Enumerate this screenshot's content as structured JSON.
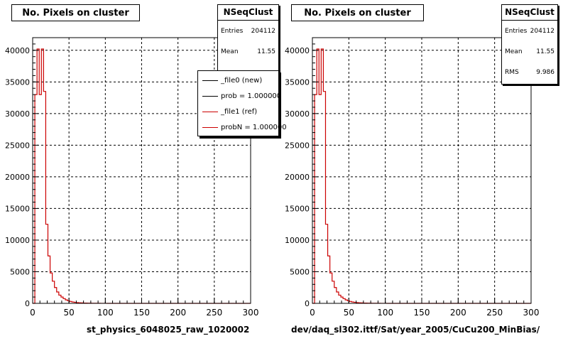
{
  "colors": {
    "new": "#000000",
    "ref": "#cc0000",
    "grid": "#000000"
  },
  "panels": [
    {
      "title": "No. Pixels on cluster",
      "stats": {
        "name": "NSeqClust",
        "rows": [
          {
            "label": "Entries",
            "value": "204112"
          },
          {
            "label": "Mean",
            "value": "11.55"
          }
        ]
      },
      "legend": [
        {
          "label": "_file0 (new)",
          "color": "#000000"
        },
        {
          "label": "prob = 1.000000",
          "color": "#000000"
        },
        {
          "label": "_file1 (ref)",
          "color": "#cc0000"
        },
        {
          "label": "probN = 1.000000",
          "color": "#cc0000"
        }
      ],
      "footer": "st_physics_6048025_raw_1020002"
    },
    {
      "title": "No. Pixels on cluster",
      "stats": {
        "name": "NSeqClust",
        "rows": [
          {
            "label": "Entries",
            "value": "204112"
          },
          {
            "label": "Mean",
            "value": "11.55"
          },
          {
            "label": "RMS",
            "value": "9.986"
          }
        ]
      },
      "legend": [],
      "footer": "dev/daq_sl302.ittf/Sat/year_2005/CuCu200_MinBias/"
    }
  ],
  "chart_data": [
    {
      "type": "bar",
      "title": "No. Pixels on cluster",
      "xlabel": "st_physics_6048025_raw_1020002",
      "ylabel": "",
      "xlim": [
        0,
        300
      ],
      "ylim": [
        0,
        42000
      ],
      "xticks": [
        0,
        50,
        100,
        150,
        200,
        250,
        300
      ],
      "yticks": [
        0,
        5000,
        10000,
        15000,
        20000,
        25000,
        30000,
        35000,
        40000
      ],
      "xtick_labels": [
        "0",
        "50",
        "100",
        "150",
        "200",
        "250",
        "300"
      ],
      "ytick_labels": [
        "0",
        "5000",
        "10000",
        "15000",
        "20000",
        "25000",
        "30000",
        "35000",
        "40000"
      ],
      "grid": true,
      "bin_width": 3,
      "series": [
        {
          "name": "_file1 (ref)",
          "color": "#cc0000",
          "values": [
            0,
            33000,
            40200,
            33000,
            40200,
            33500,
            12500,
            7500,
            4800,
            3500,
            2500,
            1800,
            1300,
            1000,
            750,
            550,
            400,
            300,
            220,
            160,
            120,
            90,
            70,
            50,
            40,
            30,
            25,
            20,
            15,
            12,
            10,
            8,
            6,
            5,
            4,
            3
          ]
        }
      ]
    },
    {
      "type": "bar",
      "title": "No. Pixels on cluster",
      "xlabel": "dev/daq_sl302.ittf/Sat/year_2005/CuCu200_MinBias/",
      "ylabel": "",
      "xlim": [
        0,
        300
      ],
      "ylim": [
        0,
        42000
      ],
      "xticks": [
        0,
        50,
        100,
        150,
        200,
        250,
        300
      ],
      "yticks": [
        0,
        5000,
        10000,
        15000,
        20000,
        25000,
        30000,
        35000,
        40000
      ],
      "xtick_labels": [
        "0",
        "50",
        "100",
        "150",
        "200",
        "250",
        "300"
      ],
      "ytick_labels": [
        "0",
        "5000",
        "10000",
        "15000",
        "20000",
        "25000",
        "30000",
        "35000",
        "40000"
      ],
      "grid": true,
      "bin_width": 3,
      "series": [
        {
          "name": "",
          "color": "#cc0000",
          "values": [
            0,
            33000,
            40200,
            33000,
            40200,
            33500,
            12500,
            7500,
            4800,
            3500,
            2500,
            1800,
            1300,
            1000,
            750,
            550,
            400,
            300,
            220,
            160,
            120,
            90,
            70,
            50,
            40,
            30,
            25,
            20,
            15,
            12,
            10,
            8,
            6,
            5,
            4,
            3
          ]
        }
      ]
    }
  ]
}
